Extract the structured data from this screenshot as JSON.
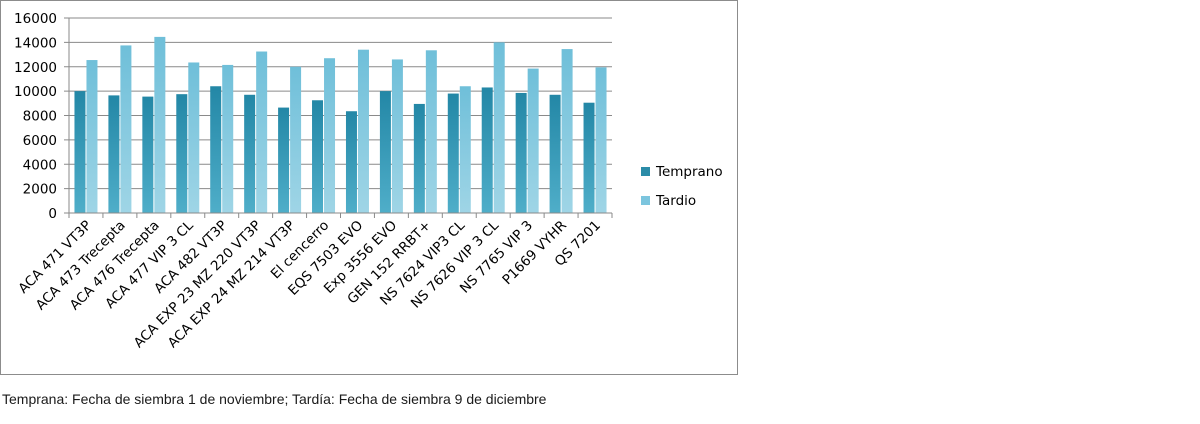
{
  "chart_data": {
    "type": "bar",
    "categories": [
      "ACA 471 VT3P",
      "ACA 473 Trecepta",
      "ACA 476 Trecepta",
      "ACA 477 VIP 3 CL",
      "ACA 482 VT3P",
      "ACA EXP 23 MZ 220 VT3P",
      "ACA EXP 24 MZ 214 VT3P",
      "El cencerro",
      "EQS 7503 EVO",
      "Exp 3556 EVO",
      "GEN 152 RRBT+",
      "NS 7624 VIP3 CL",
      "NS 7626 VIP 3 CL",
      "NS 7765 VIP 3",
      "P1669 VYHR",
      "QS 7201"
    ],
    "series": [
      {
        "name": "Temprano",
        "color": "#2b8ca8",
        "values": [
          10000,
          9650,
          9550,
          9750,
          10400,
          9700,
          8650,
          9250,
          8350,
          10000,
          8950,
          9800,
          10300,
          9850,
          9700,
          9050
        ]
      },
      {
        "name": "Tardio",
        "color": "#7cc5de",
        "values": [
          12550,
          13750,
          14450,
          12350,
          12150,
          13250,
          12000,
          12700,
          13400,
          12600,
          13350,
          10400,
          14000,
          11850,
          13450,
          11950
        ]
      }
    ],
    "yticks": [
      "0",
      "2000",
      "4000",
      "6000",
      "8000",
      "10000",
      "12000",
      "14000",
      "16000"
    ],
    "ylim": [
      0,
      16000
    ],
    "grid": true,
    "legend_position": "right",
    "title": "",
    "xlabel": "",
    "ylabel": ""
  },
  "caption": "Temprana: Fecha de siembra 1 de noviembre; Tardía: Fecha de siembra 9 de diciembre"
}
